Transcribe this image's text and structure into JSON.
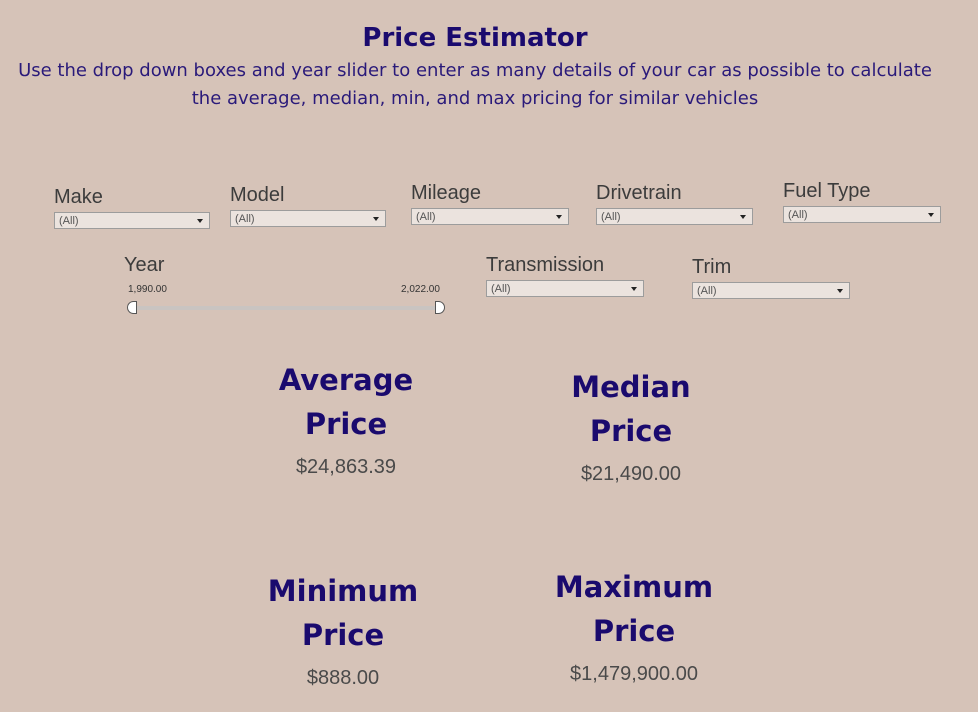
{
  "header": {
    "title": "Price Estimator",
    "subtitle_line1": "Use the drop down boxes and year slider to enter as many details of your car as possible to calculate",
    "subtitle_line2": "the average, median, min, and max  pricing for similar vehicles"
  },
  "filters": {
    "make": {
      "label": "Make",
      "value": "(All)"
    },
    "model": {
      "label": "Model",
      "value": "(All)"
    },
    "mileage": {
      "label": "Mileage",
      "value": "(All)"
    },
    "drivetrain": {
      "label": "Drivetrain",
      "value": "(All)"
    },
    "fuel_type": {
      "label": "Fuel Type",
      "value": "(All)"
    },
    "transmission": {
      "label": "Transmission",
      "value": "(All)"
    },
    "trim": {
      "label": "Trim",
      "value": "(All)"
    }
  },
  "year_slider": {
    "label": "Year",
    "min": "1,990.00",
    "max": "2,022.00"
  },
  "stats": {
    "average": {
      "title_line1": "Average",
      "title_line2": "Price",
      "value": "$24,863.39"
    },
    "median": {
      "title_line1": "Median",
      "title_line2": "Price",
      "value": "$21,490.00"
    },
    "minimum": {
      "title_line1": "Minimum",
      "title_line2": "Price",
      "value": "$888.00"
    },
    "maximum": {
      "title_line1": "Maximum",
      "title_line2": "Price",
      "value": "$1,479,900.00"
    }
  },
  "colors": {
    "background": "#d6c3b8",
    "title": "#1a0a6e",
    "dropdown_bg": "#ebe3de"
  }
}
